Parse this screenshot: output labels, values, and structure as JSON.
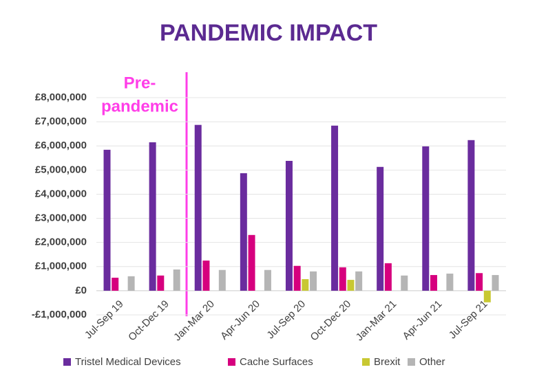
{
  "chart_data": {
    "type": "bar",
    "title": "PANDEMIC IMPACT",
    "annotation_lines": [
      "Pre-",
      "pandemic"
    ],
    "categories": [
      "Jul-Sep 19",
      "Oct-Dec 19",
      "Jan-Mar 20",
      "Apr-Jun 20",
      "Jul-Sep 20",
      "Oct-Dec 20",
      "Jan-Mar 21",
      "Apr-Jun 21",
      "Jul-Sep 21"
    ],
    "series": [
      {
        "name": "Tristel Medical Devices",
        "color": "#6a2c9e",
        "values": [
          5840000,
          6150000,
          6870000,
          4870000,
          5380000,
          6840000,
          5130000,
          5980000,
          6240000
        ]
      },
      {
        "name": "Cache Surfaces",
        "color": "#d6007e",
        "values": [
          540000,
          630000,
          1250000,
          2310000,
          1030000,
          970000,
          1140000,
          650000,
          730000
        ]
      },
      {
        "name": "Brexit",
        "color": "#c8c832",
        "values": [
          null,
          null,
          null,
          null,
          480000,
          450000,
          null,
          null,
          -480000
        ]
      },
      {
        "name": "Other",
        "color": "#b5b5b5",
        "values": [
          600000,
          880000,
          860000,
          860000,
          800000,
          800000,
          630000,
          710000,
          650000
        ]
      }
    ],
    "ylim": [
      -1000000,
      8000000
    ],
    "yticks": [
      {
        "value": -1000000,
        "label": "-£1,000,000"
      },
      {
        "value": 0,
        "label": "£0"
      },
      {
        "value": 1000000,
        "label": "£1,000,000"
      },
      {
        "value": 2000000,
        "label": "£2,000,000"
      },
      {
        "value": 3000000,
        "label": "£3,000,000"
      },
      {
        "value": 4000000,
        "label": "£4,000,000"
      },
      {
        "value": 5000000,
        "label": "£5,000,000"
      },
      {
        "value": 6000000,
        "label": "£6,000,000"
      },
      {
        "value": 7000000,
        "label": "£7,000,000"
      },
      {
        "value": 8000000,
        "label": "£8,000,000"
      }
    ],
    "grid": true,
    "legend": "bottom"
  }
}
